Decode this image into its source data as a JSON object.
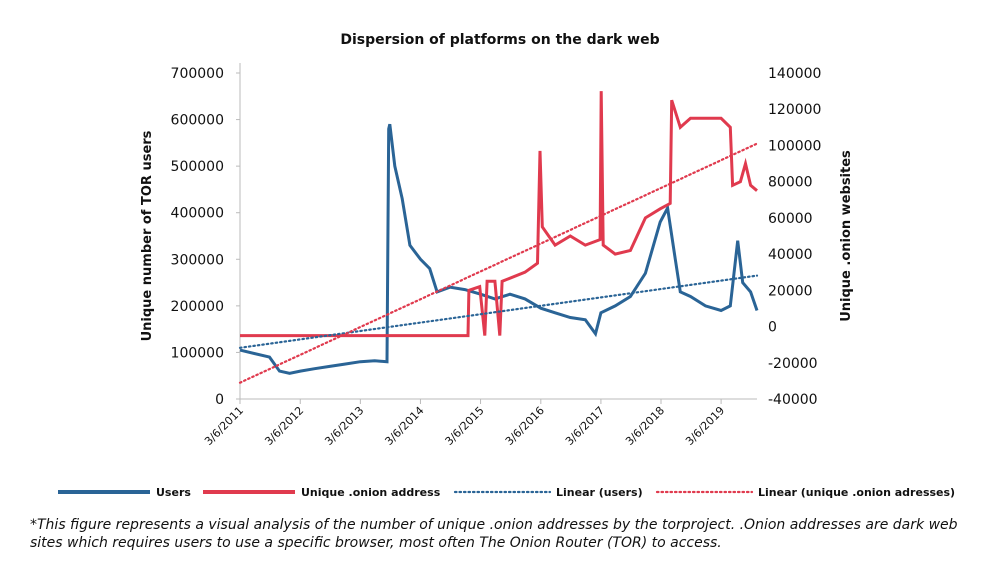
{
  "chart_data": {
    "type": "line",
    "title": "Dispersion of platforms on the dark web",
    "y_label": "Unique number of TOR users",
    "y2_label": "Unique .onion websites",
    "note": "*This figure represents a visual analysis of the number of unique .onion addresses by the torproject. .Onion addresses are dark web sites which requires users to use a specific browser, most often The Onion Router (TOR) to access.",
    "xlim": [
      "3/6/2011",
      "10/10/2019"
    ],
    "xticks": [
      "3/6/2011",
      "3/6/2012",
      "3/6/2013",
      "3/6/2014",
      "3/6/2015",
      "3/6/2016",
      "3/6/2017",
      "3/6/2018",
      "3/6/2019"
    ],
    "ylim": [
      0,
      700000
    ],
    "yticks": [
      0,
      100000,
      200000,
      300000,
      400000,
      500000,
      600000,
      700000
    ],
    "y2lim": [
      -40000,
      140000
    ],
    "y2ticks": [
      -40000,
      -20000,
      0,
      20000,
      40000,
      60000,
      80000,
      100000,
      120000,
      140000
    ],
    "series": [
      {
        "name": "Users",
        "color": "#2a6496",
        "style": "solid",
        "axis": "y",
        "x": [
          "3/6/2011",
          "9/1/2011",
          "11/1/2011",
          "1/1/2012",
          "3/6/2012",
          "6/1/2012",
          "9/1/2012",
          "12/1/2012",
          "3/6/2013",
          "6/1/2013",
          "8/15/2013",
          "8/25/2013",
          "9/1/2013",
          "10/1/2013",
          "11/15/2013",
          "1/1/2014",
          "3/6/2014",
          "5/1/2014",
          "6/15/2014",
          "9/1/2014",
          "12/1/2014",
          "3/6/2015",
          "6/1/2015",
          "9/1/2015",
          "12/1/2015",
          "3/6/2016",
          "6/1/2016",
          "9/1/2016",
          "12/1/2016",
          "2/1/2017",
          "3/6/2017",
          "6/1/2017",
          "9/1/2017",
          "12/1/2017",
          "3/1/2018",
          "4/15/2018",
          "6/1/2018",
          "7/1/2018",
          "9/1/2018",
          "12/1/2018",
          "3/6/2019",
          "5/1/2019",
          "6/15/2019",
          "7/15/2019",
          "9/1/2019",
          "10/10/2019"
        ],
        "values": [
          105000,
          90000,
          60000,
          55000,
          60000,
          65000,
          70000,
          75000,
          80000,
          82000,
          80000,
          580000,
          590000,
          500000,
          430000,
          330000,
          300000,
          280000,
          230000,
          240000,
          235000,
          225000,
          215000,
          225000,
          215000,
          195000,
          185000,
          175000,
          170000,
          140000,
          185000,
          200000,
          220000,
          270000,
          380000,
          410000,
          300000,
          230000,
          220000,
          200000,
          190000,
          200000,
          340000,
          250000,
          230000,
          190000
        ]
      },
      {
        "name": "Unique .onion address",
        "color": "#e03a4e",
        "style": "solid",
        "axis": "y2",
        "x": [
          "3/6/2011",
          "12/20/2014",
          "12/25/2014",
          "3/1/2015",
          "4/1/2015",
          "4/15/2015",
          "6/1/2015",
          "7/1/2015",
          "7/15/2015",
          "12/1/2015",
          "2/15/2016",
          "3/1/2016",
          "3/15/2016",
          "6/1/2016",
          "9/1/2016",
          "12/1/2016",
          "3/1/2017",
          "3/8/2017",
          "3/20/2017",
          "6/1/2017",
          "9/1/2017",
          "12/1/2017",
          "3/1/2018",
          "5/1/2018",
          "5/10/2018",
          "7/1/2018",
          "9/1/2018",
          "12/1/2018",
          "3/6/2019",
          "5/1/2019",
          "5/15/2019",
          "7/1/2019",
          "8/1/2019",
          "9/1/2019",
          "10/10/2019"
        ],
        "values": [
          -5000,
          -5000,
          20000,
          22000,
          -5000,
          25000,
          25000,
          -5000,
          25000,
          30000,
          35000,
          97000,
          55000,
          45000,
          50000,
          45000,
          48000,
          130000,
          45000,
          40000,
          42000,
          60000,
          65000,
          68000,
          125000,
          110000,
          115000,
          115000,
          115000,
          110000,
          78000,
          80000,
          90000,
          78000,
          75000
        ]
      },
      {
        "name": "Linear (users)",
        "color": "#2a6496",
        "style": "dotted",
        "axis": "y",
        "x": [
          "3/6/2011",
          "10/10/2019"
        ],
        "values": [
          110000,
          265000
        ]
      },
      {
        "name": "Linear (unique .onion adresses)",
        "color": "#e03a4e",
        "style": "dotted",
        "axis": "y2",
        "x": [
          "3/6/2011",
          "10/10/2019"
        ],
        "values": [
          -31000,
          101000
        ]
      }
    ]
  }
}
